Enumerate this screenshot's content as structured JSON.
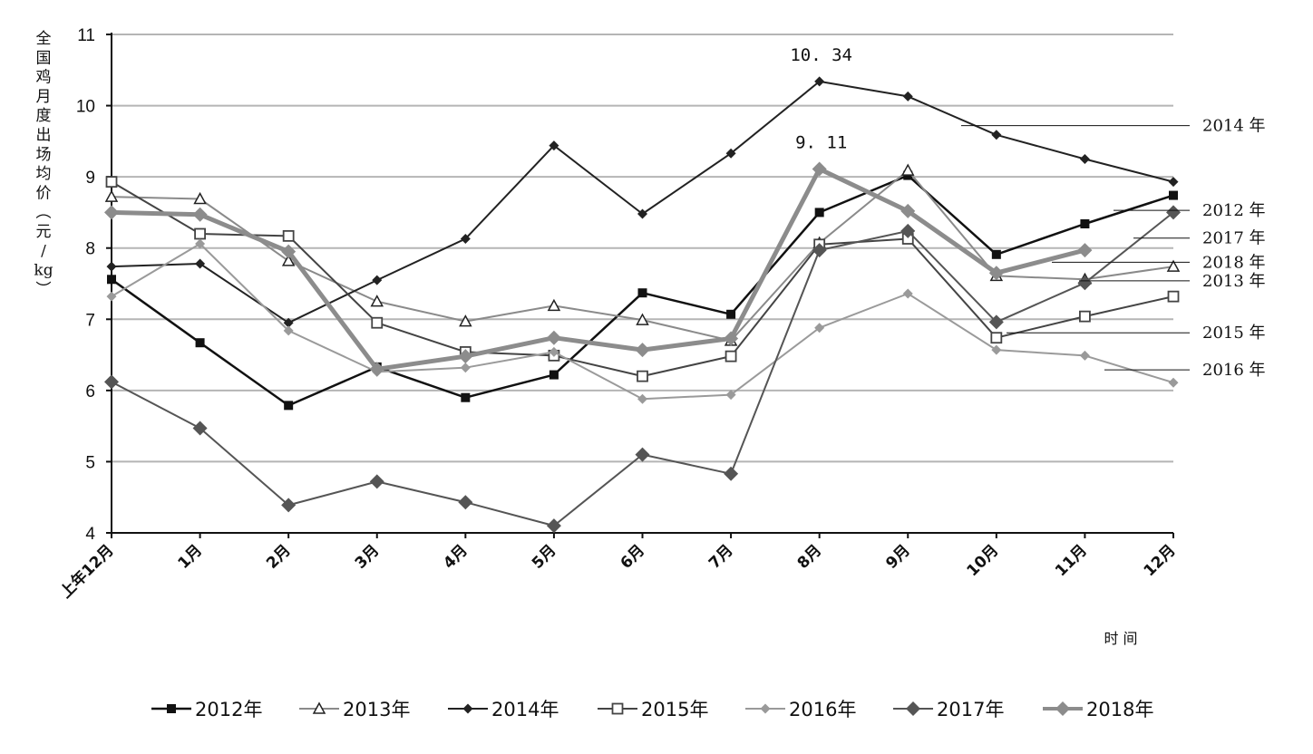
{
  "chart_data": {
    "type": "line",
    "ylabel_chars": [
      "全",
      "国",
      "鸡",
      "月",
      "度",
      "出",
      "场",
      "均",
      "价",
      "︵",
      "元",
      "/",
      "kg",
      "︶"
    ],
    "xlabel": "时 间",
    "ylim": [
      4,
      11
    ],
    "yticks": [
      "4",
      "5",
      "6",
      "7",
      "8",
      "9",
      "10",
      "11"
    ],
    "grid": true,
    "legend_position": "bottom",
    "categories": [
      "上年12月",
      "1月",
      "2月",
      "3月",
      "4月",
      "5月",
      "6月",
      "7月",
      "8月",
      "9月",
      "10月",
      "11月",
      "12月"
    ],
    "series": [
      {
        "name": "2012年",
        "color": "#111111",
        "marker": "square-filled",
        "width": 2.5,
        "values": [
          7.56,
          6.67,
          5.79,
          6.33,
          5.9,
          6.22,
          7.37,
          7.07,
          8.5,
          9.02,
          7.91,
          8.34,
          8.74
        ]
      },
      {
        "name": "2013年",
        "color": "#8a8a8a",
        "marker": "triangle-open",
        "width": 2,
        "values": [
          8.72,
          8.69,
          7.82,
          7.25,
          6.97,
          7.19,
          6.99,
          6.7,
          8.07,
          9.09,
          7.61,
          7.56,
          7.74
        ]
      },
      {
        "name": "2014年",
        "color": "#222222",
        "marker": "diamond-small",
        "width": 2,
        "values": [
          7.74,
          7.78,
          6.95,
          7.55,
          8.13,
          9.44,
          8.48,
          9.33,
          10.34,
          10.13,
          9.59,
          9.25,
          8.93
        ]
      },
      {
        "name": "2015年",
        "color": "#444444",
        "marker": "square-open",
        "width": 2,
        "values": [
          8.93,
          8.2,
          8.17,
          6.95,
          6.54,
          6.49,
          6.2,
          6.48,
          8.05,
          8.13,
          6.74,
          7.04,
          7.32
        ]
      },
      {
        "name": "2016年",
        "color": "#9a9a9a",
        "marker": "diamond-small",
        "width": 2,
        "values": [
          7.32,
          8.06,
          6.84,
          6.26,
          6.32,
          6.54,
          5.88,
          5.94,
          6.88,
          7.36,
          6.57,
          6.49,
          6.11
        ]
      },
      {
        "name": "2017年",
        "color": "#555555",
        "marker": "diamond-large",
        "width": 2,
        "values": [
          6.12,
          5.47,
          4.39,
          4.72,
          4.43,
          4.1,
          5.1,
          4.83,
          7.97,
          8.24,
          6.96,
          7.51,
          8.5
        ]
      },
      {
        "name": "2018年",
        "color": "#8c8c8c",
        "marker": "diamond-large",
        "width": 5,
        "values": [
          8.5,
          8.47,
          7.95,
          6.3,
          6.48,
          6.74,
          6.57,
          6.73,
          9.11,
          8.52,
          7.65,
          7.97,
          null
        ]
      }
    ],
    "annotations": [
      {
        "text": "10. 34",
        "series": "2014年",
        "category_index": 8
      },
      {
        "text": "9. 11",
        "series": "2018年",
        "category_index": 8
      }
    ],
    "right_labels": [
      {
        "text": "2014 年",
        "series": "2014年",
        "value": 9.72
      },
      {
        "text": "2012 年",
        "series": "2012年",
        "value": 8.53
      },
      {
        "text": "2017 年",
        "series": "2017年",
        "value": 8.14
      },
      {
        "text": "2018 年",
        "series": "2018年",
        "value": 7.8
      },
      {
        "text": "2013 年",
        "series": "2013年",
        "value": 7.54
      },
      {
        "text": "2015 年",
        "series": "2015年",
        "value": 6.81
      },
      {
        "text": "2016 年",
        "series": "2016年",
        "value": 6.29
      }
    ]
  }
}
